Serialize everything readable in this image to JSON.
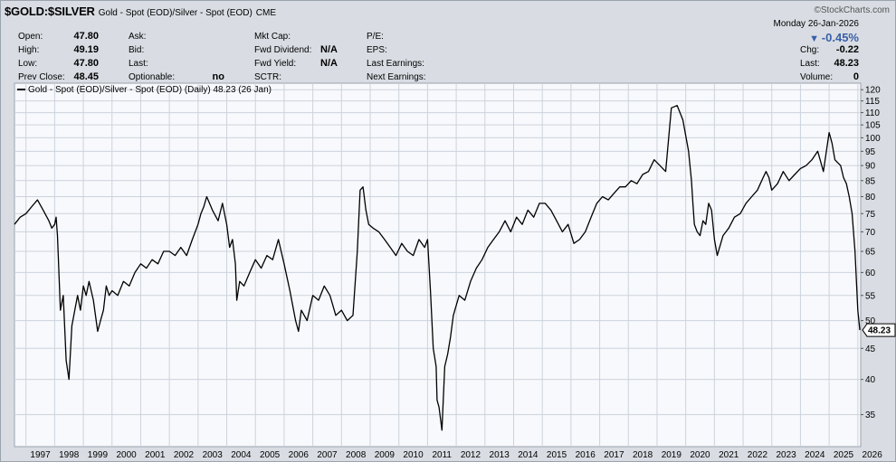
{
  "header": {
    "ticker": "$GOLD:$SILVER",
    "description": "Gold - Spot (EOD)/Silver - Spot (EOD)",
    "exchange": "CME",
    "watermark": "©StockCharts.com"
  },
  "quote": {
    "open_label": "Open:",
    "open": "47.80",
    "high_label": "High:",
    "high": "49.19",
    "low_label": "Low:",
    "low": "47.80",
    "prev_close_label": "Prev Close:",
    "prev_close": "48.45",
    "ask_label": "Ask:",
    "bid_label": "Bid:",
    "last_label": "Last:",
    "optionable_label": "Optionable:",
    "optionable": "no",
    "mktcap_label": "Mkt Cap:",
    "fwd_div_label": "Fwd Dividend:",
    "fwd_div": "N/A",
    "fwd_yield_label": "Fwd Yield:",
    "fwd_yield": "N/A",
    "sctr_label": "SCTR:",
    "pe_label": "P/E:",
    "eps_label": "EPS:",
    "last_earn_label": "Last Earnings:",
    "next_earn_label": "Next Earnings:",
    "date_line": "Monday   26-Jan-2026",
    "chg_pct": "-0.45%",
    "chg_label": "Chg:",
    "chg": "-0.22",
    "last_price_label": "Last:",
    "last_price": "48.23",
    "volume_label": "Volume:",
    "volume": "0"
  },
  "colors": {
    "plot_bg": "#f8f9fc",
    "grid": "#ccd3dc",
    "line": "#000000",
    "down_arrow": "#3a5fa8"
  },
  "chart_data": {
    "type": "line",
    "title": "",
    "legend": "Gold - Spot (EOD)/Silver - Spot (EOD) (Daily) 48.23 (26 Jan)",
    "series": [
      {
        "name": "Gold - Spot (EOD)/Silver - Spot (EOD)",
        "x": [
          1996.6,
          1996.8,
          1997.0,
          1997.2,
          1997.4,
          1997.6,
          1997.8,
          1997.9,
          1998.0,
          1998.05,
          1998.1,
          1998.15,
          1998.2,
          1998.3,
          1998.4,
          1998.5,
          1998.6,
          1998.8,
          1998.9,
          1999.0,
          1999.1,
          1999.2,
          1999.35,
          1999.5,
          1999.6,
          1999.7,
          1999.8,
          1999.9,
          2000.0,
          2000.2,
          2000.4,
          2000.6,
          2000.8,
          2001.0,
          2001.2,
          2001.4,
          2001.6,
          2001.8,
          2002.0,
          2002.2,
          2002.4,
          2002.6,
          2002.8,
          2003.0,
          2003.1,
          2003.2,
          2003.3,
          2003.5,
          2003.7,
          2003.85,
          2004.0,
          2004.1,
          2004.2,
          2004.3,
          2004.35,
          2004.45,
          2004.6,
          2004.8,
          2005.0,
          2005.2,
          2005.4,
          2005.6,
          2005.8,
          2006.0,
          2006.2,
          2006.4,
          2006.5,
          2006.6,
          2006.8,
          2007.0,
          2007.2,
          2007.4,
          2007.6,
          2007.8,
          2008.0,
          2008.2,
          2008.4,
          2008.55,
          2008.65,
          2008.75,
          2008.85,
          2008.95,
          2009.1,
          2009.3,
          2009.5,
          2009.7,
          2009.9,
          2010.1,
          2010.3,
          2010.5,
          2010.7,
          2010.9,
          2011.0,
          2011.1,
          2011.2,
          2011.3,
          2011.33,
          2011.4,
          2011.5,
          2011.6,
          2011.7,
          2011.8,
          2011.9,
          2012.1,
          2012.3,
          2012.5,
          2012.7,
          2012.9,
          2013.1,
          2013.3,
          2013.5,
          2013.7,
          2013.9,
          2014.1,
          2014.3,
          2014.5,
          2014.7,
          2014.9,
          2015.1,
          2015.3,
          2015.5,
          2015.7,
          2015.9,
          2016.1,
          2016.3,
          2016.5,
          2016.7,
          2016.9,
          2017.1,
          2017.3,
          2017.5,
          2017.7,
          2017.9,
          2018.1,
          2018.3,
          2018.5,
          2018.7,
          2018.9,
          2019.1,
          2019.3,
          2019.5,
          2019.7,
          2019.9,
          2020.1,
          2020.2,
          2020.25,
          2020.3,
          2020.4,
          2020.5,
          2020.6,
          2020.7,
          2020.8,
          2020.9,
          2021.0,
          2021.1,
          2021.3,
          2021.5,
          2021.7,
          2021.9,
          2022.1,
          2022.3,
          2022.5,
          2022.6,
          2022.7,
          2022.8,
          2022.9,
          2023.0,
          2023.2,
          2023.4,
          2023.6,
          2023.8,
          2024.0,
          2024.2,
          2024.4,
          2024.6,
          2024.8,
          2025.0,
          2025.1,
          2025.2,
          2025.3,
          2025.4,
          2025.5,
          2025.6,
          2025.7,
          2025.8,
          2025.9,
          2026.0,
          2026.07
        ],
        "y": [
          72,
          74,
          75,
          77,
          79,
          76,
          73,
          71,
          72,
          74,
          69,
          60,
          52,
          55,
          43,
          40,
          49,
          55,
          52,
          57,
          55,
          58,
          54,
          48,
          50,
          52,
          57,
          55,
          56,
          55,
          58,
          57,
          60,
          62,
          61,
          63,
          62,
          65,
          65,
          64,
          66,
          64,
          68,
          72,
          75,
          77,
          80,
          76,
          73,
          78,
          72,
          66,
          68,
          62,
          54,
          58,
          57,
          60,
          63,
          61,
          64,
          63,
          68,
          62,
          56,
          50,
          48,
          52,
          50,
          55,
          54,
          57,
          55,
          51,
          52,
          50,
          51,
          65,
          82,
          83,
          76,
          72,
          71,
          70,
          68,
          66,
          64,
          67,
          65,
          64,
          68,
          66,
          68,
          56,
          45,
          42,
          37,
          36,
          33,
          42,
          44,
          47,
          51,
          55,
          54,
          58,
          61,
          63,
          66,
          68,
          70,
          73,
          70,
          74,
          72,
          76,
          74,
          78,
          78,
          76,
          73,
          70,
          72,
          67,
          68,
          70,
          74,
          78,
          80,
          79,
          81,
          83,
          83,
          85,
          84,
          87,
          88,
          92,
          90,
          88,
          112,
          113,
          107,
          95,
          85,
          78,
          72,
          70,
          69,
          73,
          72,
          78,
          76,
          68,
          64,
          69,
          71,
          74,
          75,
          78,
          80,
          82,
          84,
          86,
          88,
          86,
          82,
          84,
          88,
          85,
          87,
          89,
          90,
          92,
          95,
          88,
          102,
          98,
          92,
          91,
          90,
          86,
          84,
          80,
          75,
          65,
          52,
          48.23
        ]
      }
    ],
    "xlim": [
      1996.6,
      2026.1
    ],
    "ylim": [
      31,
      123
    ],
    "y_scale": "log",
    "x_ticks": [
      "1997",
      "1998",
      "1999",
      "2000",
      "2001",
      "2002",
      "2003",
      "2004",
      "2005",
      "2006",
      "2007",
      "2008",
      "2009",
      "2010",
      "2011",
      "2012",
      "2013",
      "2014",
      "2015",
      "2016",
      "2017",
      "2018",
      "2019",
      "2020",
      "2021",
      "2022",
      "2023",
      "2024",
      "2025",
      "2026"
    ],
    "y_ticks": [
      "35",
      "40",
      "45",
      "50",
      "55",
      "60",
      "65",
      "70",
      "75",
      "80",
      "85",
      "90",
      "95",
      "100",
      "105",
      "110",
      "115",
      "120"
    ],
    "last_value_label": "48.23",
    "grid": true,
    "legend_position": "top-left"
  }
}
